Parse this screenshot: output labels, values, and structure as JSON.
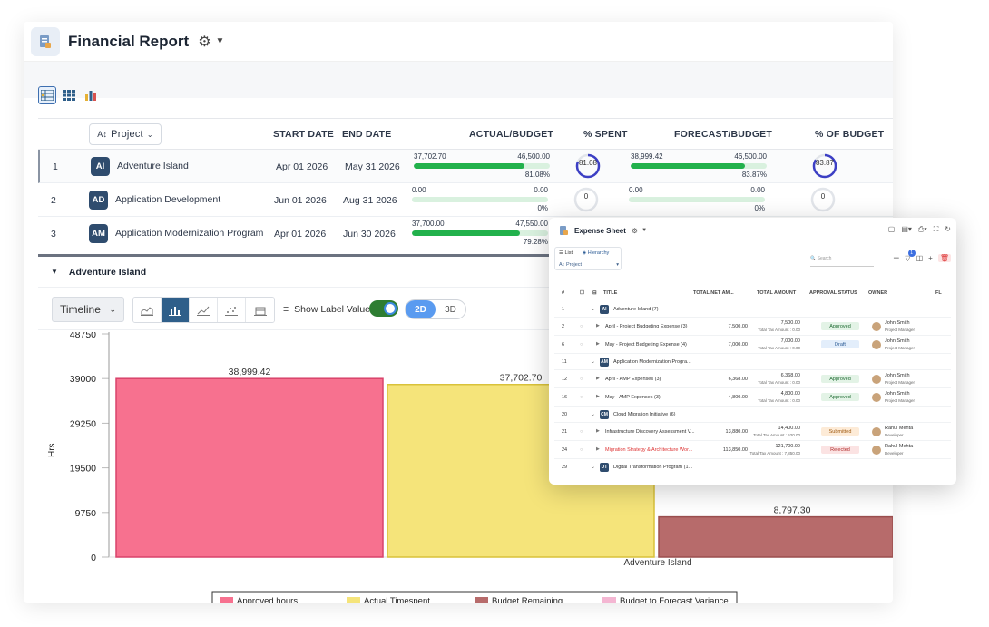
{
  "app": {
    "title": "Financial Report"
  },
  "table": {
    "headers": {
      "project": "Project",
      "start": "START DATE",
      "end": "END DATE",
      "actual_budget": "ACTUAL/BUDGET",
      "spent": "% SPENT",
      "forecast_budget": "FORECAST/BUDGET",
      "of_budget": "% OF BUDGET"
    },
    "rows": [
      {
        "num": "1",
        "initials": "AI",
        "name": "Adventure Island",
        "start": "Apr 01 2026",
        "end": "May 31 2026",
        "actual": "37,702.70",
        "budget": "46,500.00",
        "actual_pct": "81.08%",
        "actual_fill": 0.81,
        "spent": "81.08",
        "spent_frac": 0.81,
        "forecast": "38,999.42",
        "f_budget": "46,500.00",
        "forecast_pct": "83.87%",
        "forecast_fill": 0.84,
        "of_budget": "83.87",
        "of_budget_frac": 0.84
      },
      {
        "num": "2",
        "initials": "AD",
        "name": "Application Development",
        "start": "Jun 01 2026",
        "end": "Aug 31 2026",
        "actual": "0.00",
        "budget": "0.00",
        "actual_pct": "0%",
        "actual_fill": 0,
        "spent": "0",
        "spent_frac": 0,
        "forecast": "0.00",
        "f_budget": "0.00",
        "forecast_pct": "0%",
        "forecast_fill": 0,
        "of_budget": "0",
        "of_budget_frac": 0
      },
      {
        "num": "3",
        "initials": "AM",
        "name": "Application Modernization Program",
        "start": "Apr 01 2026",
        "end": "Jun 30 2026",
        "actual": "37,700.00",
        "budget": "47,550.00",
        "actual_pct": "79.28%",
        "actual_fill": 0.79
      }
    ]
  },
  "section": {
    "title": "Adventure Island"
  },
  "toolbar": {
    "timeline": "Timeline",
    "show_label": "Show Label Value",
    "d2": "2D",
    "d3": "3D"
  },
  "chart_data": {
    "type": "bar",
    "categories": [
      "Adventure Island"
    ],
    "series": [
      {
        "name": "Approved hours",
        "values": [
          38999.42
        ],
        "color": "#f7718f"
      },
      {
        "name": "Actual Timespent",
        "values": [
          37702.7
        ],
        "color": "#f5e47a"
      },
      {
        "name": "Budget Remaining",
        "values": [
          8797.3
        ],
        "color": "#b76b6b"
      },
      {
        "name": "Budget to Forecast Variance",
        "values": [
          null
        ],
        "color": "#f4b6d2"
      }
    ],
    "data_labels": [
      "38,999.42",
      "37,702.70",
      "8,797.30"
    ],
    "yticks": [
      "48750",
      "39000",
      "29250",
      "19500",
      "9750",
      "0"
    ],
    "ylabel": "Hrs",
    "xlabel": "Adventure Island",
    "ylim": [
      0,
      48750
    ]
  },
  "expense": {
    "title": "Expense Sheet",
    "tabs": {
      "list": "List",
      "hierarchy": "Hierarchy",
      "project": "Project"
    },
    "search_placeholder": "Search",
    "filter_count": "1",
    "headers": {
      "num": "#",
      "title": "TITLE",
      "net": "TOTAL NET AM...",
      "amount": "TOTAL AMOUNT",
      "status": "APPROVAL STATUS",
      "owner": "OWNER",
      "fl": "FL"
    },
    "rows": [
      {
        "kind": "group",
        "num": "1",
        "initials": "AI",
        "title": "Adventure Island (7)"
      },
      {
        "kind": "item",
        "num": "2",
        "title": "April - Project Budgeting Expense (3)",
        "net": "7,500.00",
        "amount": "7,500.00",
        "tax": "Total Tax Amount : 0.00",
        "status": "Approved",
        "status_class": "b-approved",
        "owner": "John Smith",
        "role": "Project Manager"
      },
      {
        "kind": "item",
        "num": "6",
        "title": "May - Project Budgeting Expense (4)",
        "net": "7,000.00",
        "amount": "7,000.00",
        "tax": "Total Tax Amount : 0.00",
        "status": "Draft",
        "status_class": "b-draft",
        "owner": "John Smith",
        "role": "Project Manager"
      },
      {
        "kind": "group",
        "num": "11",
        "initials": "AM",
        "title": "Application Modernization Progra..."
      },
      {
        "kind": "item",
        "num": "12",
        "title": "April - AMP Expenses (3)",
        "net": "6,368.00",
        "amount": "6,368.00",
        "tax": "Total Tax Amount : 0.00",
        "status": "Approved",
        "status_class": "b-approved",
        "owner": "John Smith",
        "role": "Project Manager"
      },
      {
        "kind": "item",
        "num": "16",
        "title": "May - AMP Expenses (3)",
        "net": "4,800.00",
        "amount": "4,800.00",
        "tax": "Total Tax Amount : 0.00",
        "status": "Approved",
        "status_class": "b-approved",
        "owner": "John Smith",
        "role": "Project Manager"
      },
      {
        "kind": "group",
        "num": "20",
        "initials": "CM",
        "title": "Cloud Migration Initiative (6)"
      },
      {
        "kind": "item",
        "num": "21",
        "title": "Infrastructure Discovery Assessment V...",
        "net": "13,880.00",
        "amount": "14,400.00",
        "tax": "Total Tax Amount : 520.00",
        "status": "Submitted",
        "status_class": "b-submitted",
        "owner": "Rahul Mehta",
        "role": "Developer"
      },
      {
        "kind": "item",
        "num": "24",
        "title": "Migration Strategy & Architecture Wor...",
        "net": "113,850.00",
        "amount": "121,700.00",
        "tax": "Total Tax Amount : 7,850.00",
        "status": "Rejected",
        "status_class": "b-rejected",
        "owner": "Rahul Mehta",
        "role": "Developer",
        "red": true
      },
      {
        "kind": "group",
        "num": "29",
        "initials": "DT",
        "title": "Digital Transformation Program (1..."
      }
    ]
  }
}
